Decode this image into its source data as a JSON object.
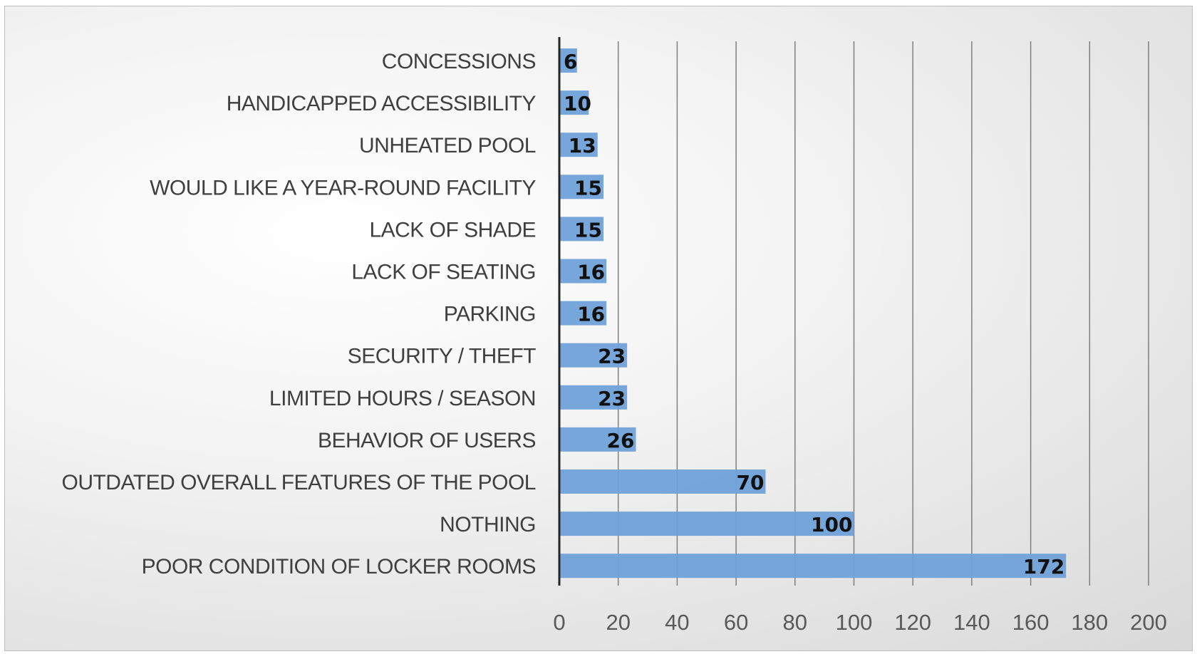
{
  "chart_data": {
    "type": "bar",
    "orientation": "horizontal",
    "categories": [
      "CONCESSIONS",
      "HANDICAPPED ACCESSIBILITY",
      "UNHEATED POOL",
      "WOULD LIKE A YEAR-ROUND FACILITY",
      "LACK OF SHADE",
      "LACK OF SEATING",
      "PARKING",
      "SECURITY / THEFT",
      "LIMITED HOURS / SEASON",
      "BEHAVIOR OF USERS",
      "OUTDATED OVERALL FEATURES OF THE POOL",
      "NOTHING",
      "POOR CONDITION OF LOCKER ROOMS"
    ],
    "values": [
      6,
      10,
      13,
      15,
      15,
      16,
      16,
      23,
      23,
      26,
      70,
      100,
      172
    ],
    "xlim": [
      0,
      200
    ],
    "xticks": [
      0,
      20,
      40,
      60,
      80,
      100,
      120,
      140,
      160,
      180,
      200
    ],
    "grid": "vertical",
    "data_labels": true,
    "bar_color": "#6fa1d8"
  }
}
